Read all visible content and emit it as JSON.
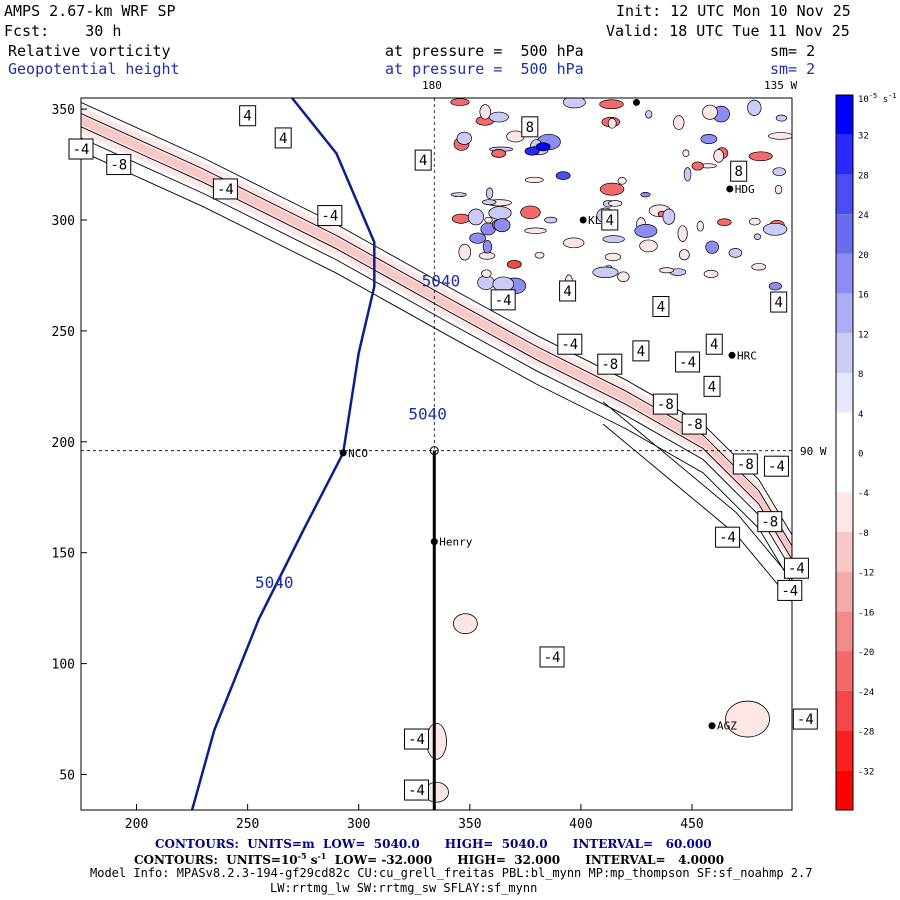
{
  "header": {
    "model": "AMPS 2.67-km WRF SP",
    "fcst": "Fcst:    30 h",
    "init": "Init: 12 UTC Mon 10 Nov 25",
    "valid": "Valid: 18 UTC Tue 11 Nov 25",
    "field1": "Relative vorticity",
    "field2": "Geopotential height",
    "level1": "at pressure =  500 hPa",
    "level2": "at pressure =  500 hPa",
    "sm1": "sm= 2",
    "sm2": "sm= 2"
  },
  "chart_data": {
    "type": "contour",
    "xlim": [
      175,
      495
    ],
    "ylim": [
      34,
      355
    ],
    "x_ticks": [
      200,
      250,
      300,
      350,
      400,
      450
    ],
    "y_ticks": [
      50,
      100,
      150,
      200,
      250,
      300,
      350
    ],
    "x_tick_labels": [
      "200",
      "250",
      "300",
      "350",
      "400",
      "450"
    ],
    "y_tick_labels": [
      "50",
      "100",
      "150",
      "200",
      "250",
      "300",
      "350"
    ],
    "grid_labels": {
      "lon_180": "180",
      "lon_135W": "135 W",
      "lat_90W": "90 W"
    },
    "height_contour": {
      "value": 5040,
      "label": "5040",
      "label_points": [
        [
          337,
          270
        ],
        [
          331,
          210
        ],
        [
          262,
          134
        ]
      ]
    },
    "reference_point": [
      334,
      196
    ],
    "section_line": {
      "x": 334,
      "y_from": 196,
      "y_to": 34
    },
    "stations": [
      {
        "name": "NCO",
        "x": 293,
        "y": 195
      },
      {
        "name": "Henry",
        "x": 334,
        "y": 155
      },
      {
        "name": "KLN",
        "x": 401,
        "y": 300
      },
      {
        "name": "HDG",
        "x": 467,
        "y": 314
      },
      {
        "name": "HRC",
        "x": 468,
        "y": 239
      },
      {
        "name": "AGZ",
        "x": 459,
        "y": 72
      },
      {
        "name": "",
        "x": 425,
        "y": 353
      },
      {
        "name": "",
        "x": 493,
        "y": 142
      }
    ],
    "vorticity_labels": [
      {
        "t": "4",
        "x": 250,
        "y": 347
      },
      {
        "t": "4",
        "x": 266,
        "y": 337
      },
      {
        "t": "4",
        "x": 329,
        "y": 327
      },
      {
        "t": "-4",
        "x": 175,
        "y": 332
      },
      {
        "t": "-8",
        "x": 192,
        "y": 325
      },
      {
        "t": "-4",
        "x": 240,
        "y": 314
      },
      {
        "t": "-4",
        "x": 287,
        "y": 302
      },
      {
        "t": "8",
        "x": 377,
        "y": 342
      },
      {
        "t": "4",
        "x": 413,
        "y": 300
      },
      {
        "t": "8",
        "x": 471,
        "y": 322
      },
      {
        "t": "-4",
        "x": 365,
        "y": 264
      },
      {
        "t": "4",
        "x": 394,
        "y": 268
      },
      {
        "t": "4",
        "x": 436,
        "y": 261
      },
      {
        "t": "4",
        "x": 489,
        "y": 263
      },
      {
        "t": "-4",
        "x": 395,
        "y": 244
      },
      {
        "t": "-8",
        "x": 413,
        "y": 235
      },
      {
        "t": "4",
        "x": 427,
        "y": 241
      },
      {
        "t": "4",
        "x": 460,
        "y": 244
      },
      {
        "t": "-4",
        "x": 448,
        "y": 236
      },
      {
        "t": "4",
        "x": 459,
        "y": 225
      },
      {
        "t": "-8",
        "x": 438,
        "y": 217
      },
      {
        "t": "-8",
        "x": 451,
        "y": 208
      },
      {
        "t": "-8",
        "x": 474,
        "y": 190
      },
      {
        "t": "-4",
        "x": 488,
        "y": 189
      },
      {
        "t": "-8",
        "x": 485,
        "y": 164
      },
      {
        "t": "-4",
        "x": 466,
        "y": 157
      },
      {
        "t": "-4",
        "x": 497,
        "y": 143
      },
      {
        "t": "-4",
        "x": 494,
        "y": 133
      },
      {
        "t": "-4",
        "x": 387,
        "y": 103
      },
      {
        "t": "-4",
        "x": 501,
        "y": 75
      },
      {
        "t": "-4",
        "x": 326,
        "y": 66
      },
      {
        "t": "-4",
        "x": 326,
        "y": 43
      }
    ],
    "colorbar": {
      "unit": "10",
      "unit_exp": "-5",
      "unit_suffix": "s",
      "unit_suffix_exp": "-1",
      "levels": [
        32,
        28,
        24,
        20,
        16,
        12,
        8,
        4,
        0,
        -4,
        -8,
        -12,
        -16,
        -20,
        -24,
        -28,
        -32
      ],
      "colors": [
        "#0000ff",
        "#2929ff",
        "#4c4cf4",
        "#6b6bf0",
        "#8c8cf2",
        "#adadf5",
        "#cbcbf8",
        "#e6e6fc",
        "#ffffff",
        "#ffffff",
        "#fce6e6",
        "#f8c8c8",
        "#f5aaaa",
        "#f28c8c",
        "#f26a6a",
        "#f44848",
        "#f82020",
        "#ff0000"
      ]
    }
  },
  "footer": {
    "line1": "CONTOURS:  UNITS=m  LOW=  5040.0      HIGH=  5040.0      INTERVAL=   60.000",
    "line2_pre": "CONTOURS:  UNITS=10",
    "line2_exp": "-5",
    "line2_mid": " s",
    "line2_exp2": "-1",
    "line2_post": "  LOW= -32.000      HIGH=  32.000      INTERVAL=   4.0000",
    "line3": "Model Info: MPASv8.2.3-194-gf29cd82c CU:cu_grell_freitas PBL:bl_mynn MP:mp_thompson SF:sf_noahmp 2.7",
    "line4": "LW:rrtmg_lw SW:rrtmg_sw SFLAY:sf_mynn"
  }
}
